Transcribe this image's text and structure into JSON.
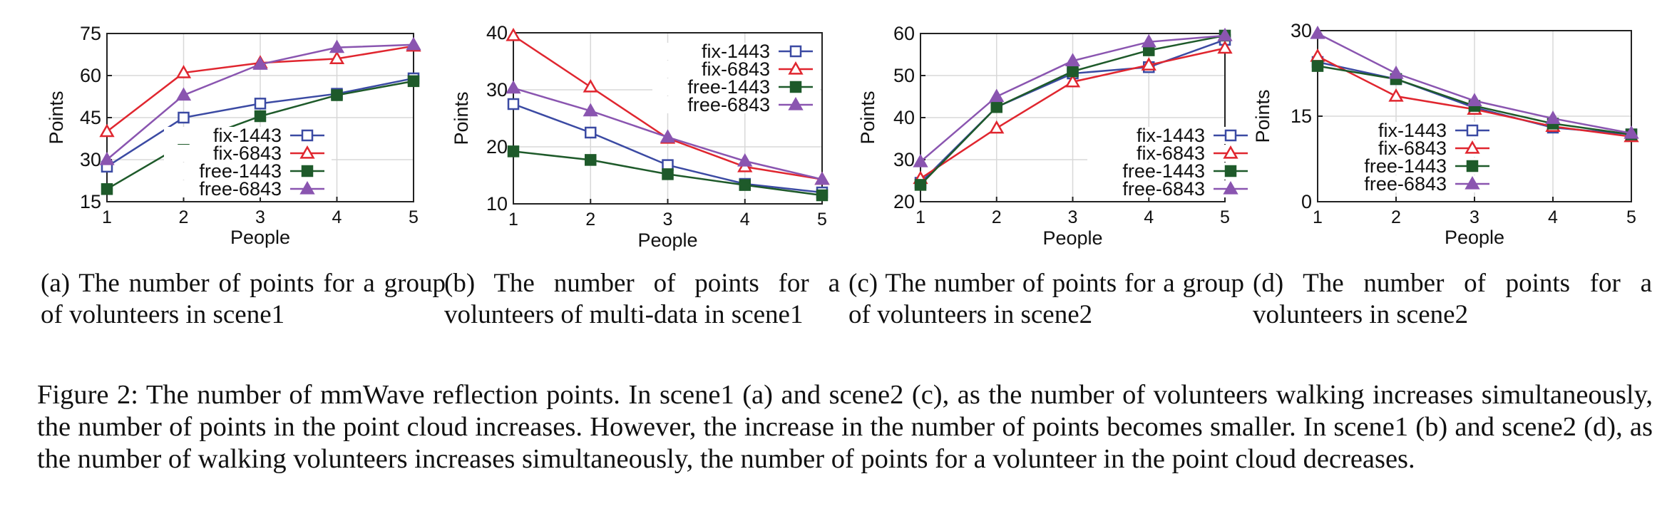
{
  "chart_data": [
    {
      "type": "line",
      "xlabel": "People",
      "ylabel": "Points",
      "x": [
        1,
        2,
        3,
        4,
        5
      ],
      "ylim": [
        15,
        75
      ],
      "yticks": [
        15,
        30,
        45,
        60,
        75
      ],
      "grid": true,
      "legend_placement": "bottom-right",
      "series": [
        {
          "name": "fix-1443",
          "marker": "open-square",
          "color": "#3b4aa3",
          "values": [
            27.5,
            45,
            50,
            53.5,
            59
          ]
        },
        {
          "name": "fix-6843",
          "marker": "open-triangle",
          "color": "#e0262f",
          "values": [
            40,
            61,
            64.5,
            66,
            70.5
          ]
        },
        {
          "name": "free-1443",
          "marker": "filled-square",
          "color": "#1e5a2a",
          "values": [
            19.5,
            35.5,
            45.5,
            53,
            58
          ]
        },
        {
          "name": "free-6843",
          "marker": "filled-triangle",
          "color": "#8a55b0",
          "values": [
            30,
            53,
            64,
            70,
            71
          ]
        }
      ],
      "caption": "(a) The number of points for a group of volunteers in scene1"
    },
    {
      "type": "line",
      "xlabel": "People",
      "ylabel": "Points",
      "x": [
        1,
        2,
        3,
        4,
        5
      ],
      "ylim": [
        10,
        40
      ],
      "yticks": [
        10,
        20,
        30,
        40
      ],
      "grid": true,
      "legend_placement": "top-right",
      "series": [
        {
          "name": "fix-1443",
          "marker": "open-square",
          "color": "#3b4aa3",
          "values": [
            27.5,
            22.5,
            16.8,
            13.5,
            12
          ]
        },
        {
          "name": "fix-6843",
          "marker": "open-triangle",
          "color": "#e0262f",
          "values": [
            39.5,
            30.5,
            21.5,
            16.5,
            14.3
          ]
        },
        {
          "name": "free-1443",
          "marker": "filled-square",
          "color": "#1e5a2a",
          "values": [
            19.2,
            17.7,
            15.2,
            13.3,
            11.5
          ]
        },
        {
          "name": "free-6843",
          "marker": "filled-triangle",
          "color": "#8a55b0",
          "values": [
            30.3,
            26.3,
            21.7,
            17.5,
            14.3
          ]
        }
      ],
      "caption": "(b) The number of points for a volunteers of multi-data in scene1"
    },
    {
      "type": "line",
      "xlabel": "People",
      "ylabel": "Points",
      "x": [
        1,
        2,
        3,
        4,
        5
      ],
      "ylim": [
        20,
        60
      ],
      "yticks": [
        20,
        30,
        40,
        50,
        60
      ],
      "grid": true,
      "legend_placement": "bottom-right",
      "series": [
        {
          "name": "fix-1443",
          "marker": "open-square",
          "color": "#3b4aa3",
          "values": [
            24.5,
            42.5,
            50.5,
            52,
            58.5
          ]
        },
        {
          "name": "fix-6843",
          "marker": "open-triangle",
          "color": "#e0262f",
          "values": [
            25.5,
            37.5,
            48.5,
            52.5,
            56.5
          ]
        },
        {
          "name": "free-1443",
          "marker": "filled-square",
          "color": "#1e5a2a",
          "values": [
            24,
            42.5,
            51,
            56,
            59.5
          ]
        },
        {
          "name": "free-6843",
          "marker": "filled-triangle",
          "color": "#8a55b0",
          "values": [
            29.5,
            45,
            53.5,
            58,
            59.5
          ]
        }
      ],
      "caption": "(c) The number of points for a group of volunteers in scene2"
    },
    {
      "type": "line",
      "xlabel": "People",
      "ylabel": "Points",
      "x": [
        1,
        2,
        3,
        4,
        5
      ],
      "ylim": [
        0,
        30
      ],
      "yticks": [
        0,
        15,
        30
      ],
      "grid": true,
      "legend_placement": "middle-left",
      "series": [
        {
          "name": "fix-1443",
          "marker": "open-square",
          "color": "#3b4aa3",
          "values": [
            24.5,
            21.5,
            16.5,
            13,
            11.8
          ]
        },
        {
          "name": "fix-6843",
          "marker": "open-triangle",
          "color": "#e0262f",
          "values": [
            25.5,
            18.5,
            16.2,
            13.2,
            11.4
          ]
        },
        {
          "name": "free-1443",
          "marker": "filled-square",
          "color": "#1e5a2a",
          "values": [
            23.8,
            21.5,
            16.8,
            13.7,
            11.8
          ]
        },
        {
          "name": "free-6843",
          "marker": "filled-triangle",
          "color": "#8a55b0",
          "values": [
            29.5,
            22.5,
            17.7,
            14.6,
            12
          ]
        }
      ],
      "caption": "(d) The number of points for a volunteers in scene2"
    }
  ],
  "figure_caption": "Figure 2: The number of mmWave reflection points. In scene1 (a) and scene2 (c), as the number of volunteers walking increases simultaneously, the number of points in the point cloud increases. However, the increase in the number of points becomes smaller. In scene1 (b) and scene2 (d), as the number of walking volunteers increases simultaneously, the number of points for a volunteer in the point cloud decreases."
}
